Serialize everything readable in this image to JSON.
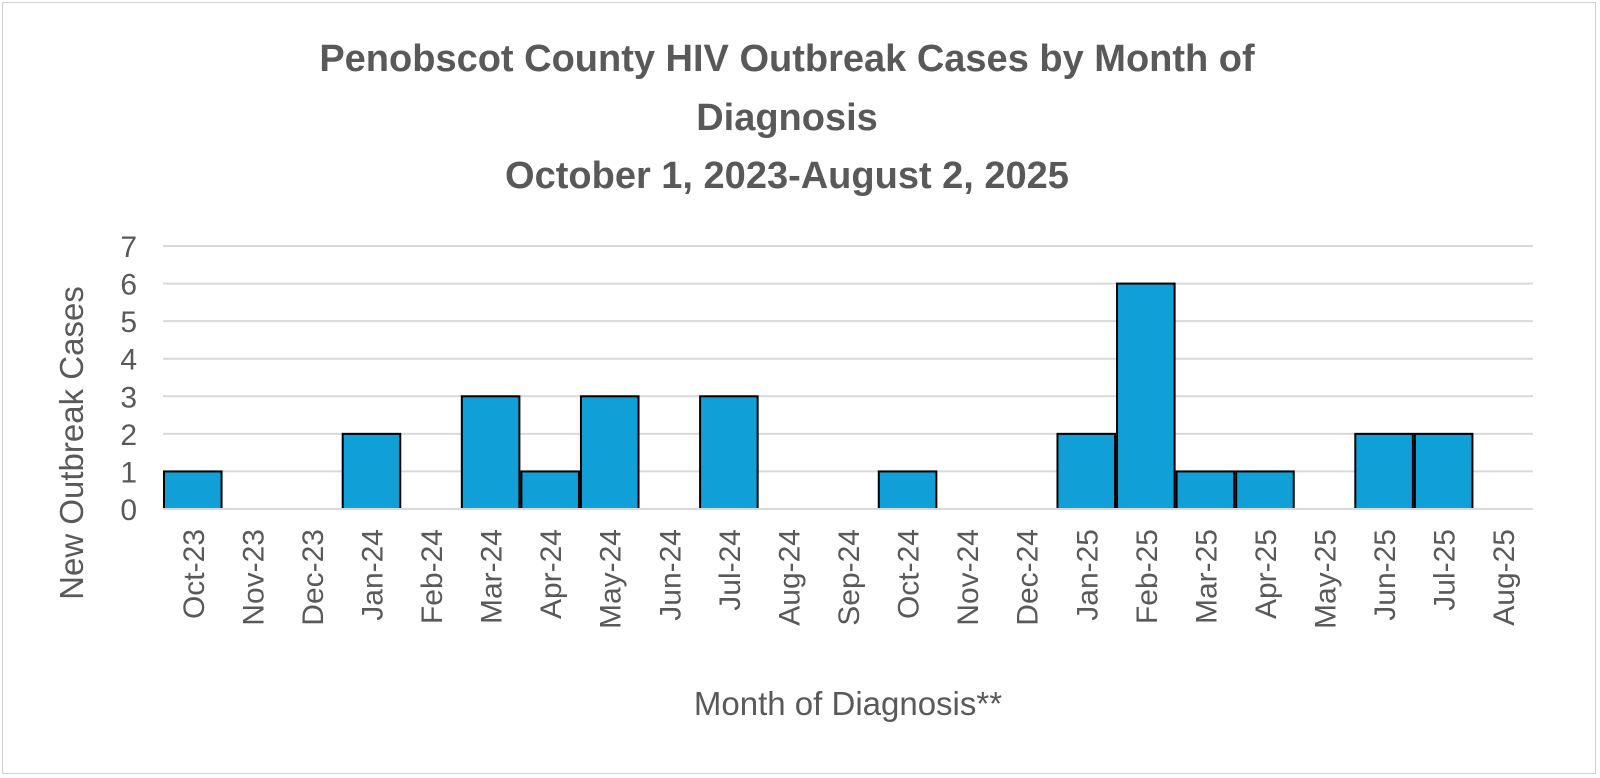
{
  "chart_data": {
    "type": "bar",
    "title_lines": [
      "Penobscot County HIV Outbreak Cases by Month of",
      "Diagnosis",
      "October 1, 2023-August 2, 2025"
    ],
    "xlabel": "Month of Diagnosis**",
    "ylabel": "New Outbreak Cases",
    "ylim": [
      0,
      7
    ],
    "yticks": [
      "0",
      "1",
      "2",
      "3",
      "4",
      "5",
      "6",
      "7"
    ],
    "grid": true,
    "categories": [
      "Oct-23",
      "Nov-23",
      "Dec-23",
      "Jan-24",
      "Feb-24",
      "Mar-24",
      "Apr-24",
      "May-24",
      "Jun-24",
      "Jul-24",
      "Aug-24",
      "Sep-24",
      "Oct-24",
      "Nov-24",
      "Dec-24",
      "Jan-25",
      "Feb-25",
      "Mar-25",
      "Apr-25",
      "May-25",
      "Jun-25",
      "Jul-25",
      "Aug-25"
    ],
    "values": [
      1,
      0,
      0,
      2,
      0,
      3,
      1,
      3,
      0,
      3,
      0,
      0,
      1,
      0,
      0,
      2,
      6,
      1,
      1,
      0,
      2,
      2,
      0
    ],
    "bar_color": "#119fd8",
    "bar_edge_color": "#000000"
  }
}
